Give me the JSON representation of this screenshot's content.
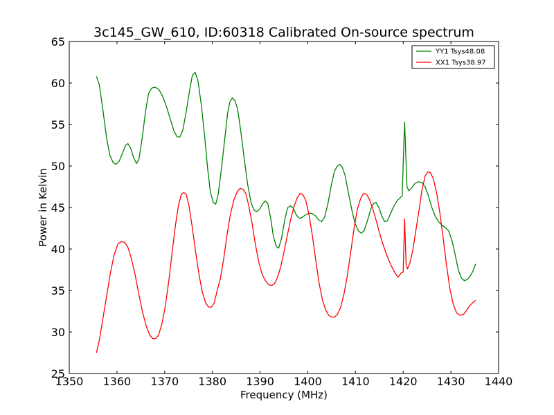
{
  "chart_data": {
    "type": "line",
    "title": "3c145_GW_610, ID:60318 Calibrated On-source spectrum",
    "xlabel": "Frequency (MHz)",
    "ylabel": "Power in Kelvin",
    "xlim": [
      1350,
      1440
    ],
    "ylim": [
      25,
      65
    ],
    "xticks": [
      1350,
      1360,
      1370,
      1380,
      1390,
      1400,
      1410,
      1420,
      1430,
      1440
    ],
    "yticks": [
      25,
      30,
      35,
      40,
      45,
      50,
      55,
      60,
      65
    ],
    "grid": false,
    "legend_position": "top-right",
    "series": [
      {
        "name": "YY1 Tsys48.08",
        "color": "#008000",
        "points": [
          [
            1355.7,
            60.8
          ],
          [
            1356.3,
            59.8
          ],
          [
            1357.0,
            57.0
          ],
          [
            1357.8,
            53.5
          ],
          [
            1358.5,
            51.3
          ],
          [
            1359.2,
            50.4
          ],
          [
            1359.8,
            50.2
          ],
          [
            1360.5,
            50.6
          ],
          [
            1361.2,
            51.6
          ],
          [
            1361.8,
            52.5
          ],
          [
            1362.3,
            52.7
          ],
          [
            1362.9,
            52.1
          ],
          [
            1363.5,
            51.0
          ],
          [
            1364.1,
            50.3
          ],
          [
            1364.6,
            50.8
          ],
          [
            1365.3,
            53.4
          ],
          [
            1366.0,
            56.6
          ],
          [
            1366.6,
            58.7
          ],
          [
            1367.3,
            59.4
          ],
          [
            1368.0,
            59.5
          ],
          [
            1368.8,
            59.2
          ],
          [
            1369.5,
            58.5
          ],
          [
            1370.3,
            57.3
          ],
          [
            1371.1,
            55.8
          ],
          [
            1371.9,
            54.3
          ],
          [
            1372.6,
            53.5
          ],
          [
            1373.2,
            53.5
          ],
          [
            1373.8,
            54.3
          ],
          [
            1374.5,
            56.5
          ],
          [
            1375.2,
            59.0
          ],
          [
            1375.8,
            60.9
          ],
          [
            1376.4,
            61.3
          ],
          [
            1377.0,
            60.2
          ],
          [
            1377.7,
            57.3
          ],
          [
            1378.4,
            53.5
          ],
          [
            1379.0,
            49.7
          ],
          [
            1379.6,
            46.8
          ],
          [
            1380.2,
            45.6
          ],
          [
            1380.7,
            45.4
          ],
          [
            1381.2,
            46.5
          ],
          [
            1381.9,
            49.7
          ],
          [
            1382.6,
            53.3
          ],
          [
            1383.2,
            56.4
          ],
          [
            1383.7,
            57.8
          ],
          [
            1384.2,
            58.2
          ],
          [
            1384.8,
            57.8
          ],
          [
            1385.3,
            56.8
          ],
          [
            1386.0,
            54.0
          ],
          [
            1386.7,
            50.8
          ],
          [
            1387.4,
            47.8
          ],
          [
            1388.1,
            45.6
          ],
          [
            1388.7,
            44.7
          ],
          [
            1389.3,
            44.5
          ],
          [
            1389.9,
            44.8
          ],
          [
            1390.5,
            45.4
          ],
          [
            1391.1,
            45.8
          ],
          [
            1391.6,
            45.5
          ],
          [
            1392.2,
            43.8
          ],
          [
            1392.8,
            41.5
          ],
          [
            1393.4,
            40.3
          ],
          [
            1393.9,
            40.1
          ],
          [
            1394.5,
            41.3
          ],
          [
            1395.2,
            43.6
          ],
          [
            1395.8,
            45.0
          ],
          [
            1396.4,
            45.2
          ],
          [
            1397.0,
            44.9
          ],
          [
            1397.6,
            44.1
          ],
          [
            1398.2,
            43.7
          ],
          [
            1398.8,
            43.8
          ],
          [
            1399.5,
            44.1
          ],
          [
            1400.2,
            44.3
          ],
          [
            1400.9,
            44.3
          ],
          [
            1401.6,
            44.0
          ],
          [
            1402.3,
            43.5
          ],
          [
            1402.9,
            43.3
          ],
          [
            1403.5,
            43.8
          ],
          [
            1404.2,
            45.4
          ],
          [
            1404.9,
            47.6
          ],
          [
            1405.6,
            49.4
          ],
          [
            1406.2,
            50.0
          ],
          [
            1406.7,
            50.2
          ],
          [
            1407.2,
            49.9
          ],
          [
            1407.8,
            48.9
          ],
          [
            1408.5,
            46.8
          ],
          [
            1409.2,
            44.8
          ],
          [
            1409.9,
            43.1
          ],
          [
            1410.6,
            42.2
          ],
          [
            1411.2,
            41.9
          ],
          [
            1411.8,
            42.2
          ],
          [
            1412.5,
            43.4
          ],
          [
            1413.2,
            44.8
          ],
          [
            1413.8,
            45.5
          ],
          [
            1414.3,
            45.6
          ],
          [
            1414.9,
            45.0
          ],
          [
            1415.5,
            44.0
          ],
          [
            1416.1,
            43.3
          ],
          [
            1416.7,
            43.4
          ],
          [
            1417.3,
            44.2
          ],
          [
            1418.0,
            45.1
          ],
          [
            1418.7,
            45.8
          ],
          [
            1419.4,
            46.2
          ],
          [
            1419.8,
            46.4
          ],
          [
            1420.1,
            52.0
          ],
          [
            1420.3,
            55.3
          ],
          [
            1420.5,
            52.0
          ],
          [
            1420.8,
            47.5
          ],
          [
            1421.2,
            47.0
          ],
          [
            1421.8,
            47.4
          ],
          [
            1422.5,
            47.9
          ],
          [
            1423.2,
            48.1
          ],
          [
            1423.9,
            48.0
          ],
          [
            1424.6,
            47.5
          ],
          [
            1425.3,
            46.4
          ],
          [
            1426.0,
            45.0
          ],
          [
            1426.7,
            44.0
          ],
          [
            1427.4,
            43.3
          ],
          [
            1428.1,
            42.9
          ],
          [
            1428.8,
            42.6
          ],
          [
            1429.5,
            42.2
          ],
          [
            1430.2,
            41.1
          ],
          [
            1430.9,
            39.3
          ],
          [
            1431.6,
            37.4
          ],
          [
            1432.2,
            36.5
          ],
          [
            1432.8,
            36.2
          ],
          [
            1433.4,
            36.3
          ],
          [
            1434.0,
            36.7
          ],
          [
            1434.6,
            37.3
          ],
          [
            1435.2,
            38.2
          ]
        ]
      },
      {
        "name": "XX1 Tsys38.97",
        "color": "#ff0000",
        "points": [
          [
            1355.7,
            27.5
          ],
          [
            1356.3,
            29.0
          ],
          [
            1357.0,
            31.4
          ],
          [
            1357.8,
            34.2
          ],
          [
            1358.6,
            37.0
          ],
          [
            1359.4,
            39.3
          ],
          [
            1360.2,
            40.6
          ],
          [
            1360.9,
            40.9
          ],
          [
            1361.6,
            40.8
          ],
          [
            1362.3,
            40.2
          ],
          [
            1363.0,
            38.9
          ],
          [
            1363.8,
            36.9
          ],
          [
            1364.6,
            34.5
          ],
          [
            1365.4,
            32.3
          ],
          [
            1366.2,
            30.6
          ],
          [
            1366.9,
            29.6
          ],
          [
            1367.5,
            29.2
          ],
          [
            1368.1,
            29.2
          ],
          [
            1368.7,
            29.6
          ],
          [
            1369.4,
            30.9
          ],
          [
            1370.1,
            33.0
          ],
          [
            1370.9,
            36.3
          ],
          [
            1371.6,
            39.8
          ],
          [
            1372.3,
            43.0
          ],
          [
            1372.9,
            45.3
          ],
          [
            1373.5,
            46.6
          ],
          [
            1374.0,
            46.8
          ],
          [
            1374.5,
            46.6
          ],
          [
            1375.1,
            45.2
          ],
          [
            1375.8,
            42.6
          ],
          [
            1376.5,
            39.6
          ],
          [
            1377.2,
            36.9
          ],
          [
            1377.9,
            34.8
          ],
          [
            1378.6,
            33.5
          ],
          [
            1379.2,
            33.0
          ],
          [
            1379.8,
            33.0
          ],
          [
            1380.4,
            33.5
          ],
          [
            1381.0,
            35.0
          ],
          [
            1381.7,
            36.5
          ],
          [
            1382.4,
            38.9
          ],
          [
            1383.1,
            41.8
          ],
          [
            1383.8,
            44.2
          ],
          [
            1384.5,
            45.9
          ],
          [
            1385.2,
            46.9
          ],
          [
            1385.8,
            47.3
          ],
          [
            1386.4,
            47.2
          ],
          [
            1387.0,
            46.7
          ],
          [
            1387.6,
            45.3
          ],
          [
            1388.3,
            43.2
          ],
          [
            1389.0,
            40.6
          ],
          [
            1389.7,
            38.5
          ],
          [
            1390.4,
            37.0
          ],
          [
            1391.1,
            36.2
          ],
          [
            1391.8,
            35.7
          ],
          [
            1392.4,
            35.6
          ],
          [
            1393.0,
            35.8
          ],
          [
            1393.6,
            36.5
          ],
          [
            1394.3,
            37.8
          ],
          [
            1395.0,
            39.6
          ],
          [
            1395.7,
            41.6
          ],
          [
            1396.4,
            43.5
          ],
          [
            1397.1,
            45.1
          ],
          [
            1397.8,
            46.2
          ],
          [
            1398.4,
            46.7
          ],
          [
            1399.0,
            46.5
          ],
          [
            1399.6,
            45.8
          ],
          [
            1400.3,
            44.0
          ],
          [
            1401.0,
            41.5
          ],
          [
            1401.7,
            38.5
          ],
          [
            1402.4,
            35.8
          ],
          [
            1403.1,
            33.8
          ],
          [
            1403.8,
            32.6
          ],
          [
            1404.4,
            32.0
          ],
          [
            1405.0,
            31.8
          ],
          [
            1405.6,
            31.8
          ],
          [
            1406.2,
            32.1
          ],
          [
            1406.9,
            33.0
          ],
          [
            1407.6,
            34.6
          ],
          [
            1408.3,
            36.8
          ],
          [
            1409.0,
            39.6
          ],
          [
            1409.7,
            42.5
          ],
          [
            1410.4,
            44.8
          ],
          [
            1411.1,
            46.1
          ],
          [
            1411.7,
            46.7
          ],
          [
            1412.3,
            46.6
          ],
          [
            1412.9,
            46.0
          ],
          [
            1413.6,
            44.9
          ],
          [
            1414.3,
            43.5
          ],
          [
            1415.0,
            42.0
          ],
          [
            1415.8,
            40.5
          ],
          [
            1416.6,
            39.2
          ],
          [
            1417.4,
            38.1
          ],
          [
            1418.2,
            37.2
          ],
          [
            1418.9,
            36.6
          ],
          [
            1419.7,
            37.2
          ],
          [
            1420.0,
            37.2
          ],
          [
            1420.3,
            43.6
          ],
          [
            1420.6,
            38.2
          ],
          [
            1420.9,
            37.6
          ],
          [
            1421.4,
            38.3
          ],
          [
            1422.0,
            39.8
          ],
          [
            1422.6,
            42.0
          ],
          [
            1423.3,
            44.6
          ],
          [
            1423.9,
            47.0
          ],
          [
            1424.6,
            48.8
          ],
          [
            1425.2,
            49.3
          ],
          [
            1425.7,
            49.2
          ],
          [
            1426.3,
            48.5
          ],
          [
            1427.0,
            46.8
          ],
          [
            1427.7,
            44.3
          ],
          [
            1428.4,
            41.2
          ],
          [
            1429.1,
            38.0
          ],
          [
            1429.8,
            35.2
          ],
          [
            1430.5,
            33.3
          ],
          [
            1431.2,
            32.3
          ],
          [
            1431.9,
            32.0
          ],
          [
            1432.6,
            32.1
          ],
          [
            1433.3,
            32.6
          ],
          [
            1434.0,
            33.2
          ],
          [
            1434.7,
            33.6
          ],
          [
            1435.2,
            33.8
          ]
        ]
      }
    ]
  }
}
